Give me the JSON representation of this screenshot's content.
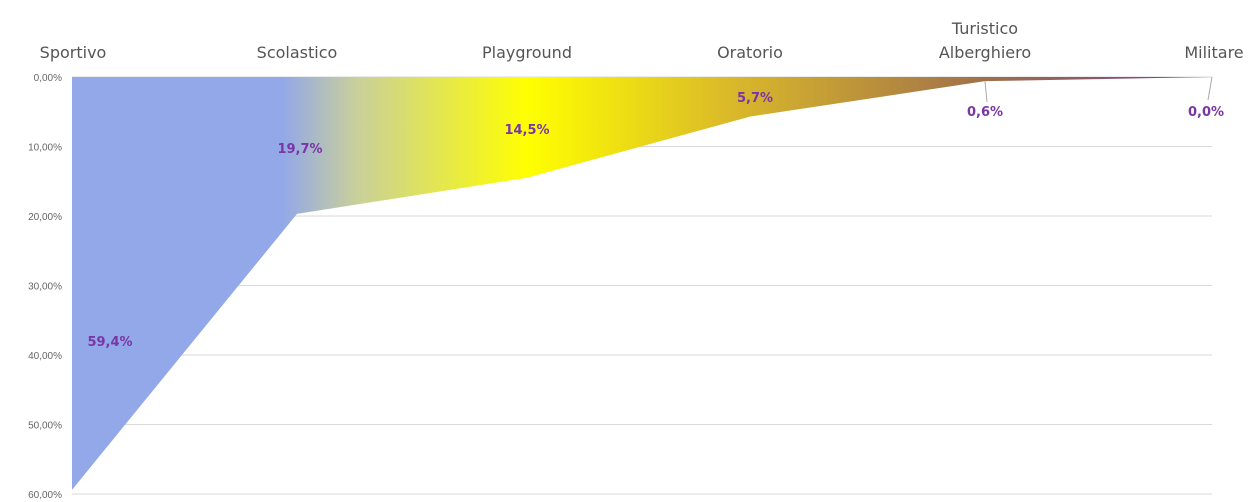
{
  "chart_data": {
    "type": "area",
    "title": "",
    "xlabel": "",
    "ylabel": "",
    "y_axis_reversed": true,
    "categories_position": "top",
    "grid": true,
    "legend": "none",
    "ylim": [
      0,
      60
    ],
    "y_ticks": [
      "0,00%",
      "10,00%",
      "20,00%",
      "30,00%",
      "40,00%",
      "50,00%",
      "60,00%"
    ],
    "categories": [
      [
        "Sportivo"
      ],
      [
        "Scolastico"
      ],
      [
        "Playground"
      ],
      [
        "Oratorio"
      ],
      [
        "Turistico",
        "Alberghiero"
      ],
      [
        "Militare"
      ]
    ],
    "series": [
      {
        "values": [
          59.4,
          19.7,
          14.5,
          5.7,
          0.6,
          0.0
        ],
        "data_labels": [
          "59,4%",
          "19,7%",
          "14,5%",
          "5,7%",
          "0,6%",
          "0,0%"
        ]
      }
    ],
    "colors": {
      "sportivo": "#93a8e8",
      "scolastico_blend": "#c9d09a",
      "playground": "#ffff00",
      "oratorio": "#d9b82a",
      "alberghiero": "#a0704a",
      "militare": "#7d3a8a",
      "label": "#7a35a6"
    }
  }
}
